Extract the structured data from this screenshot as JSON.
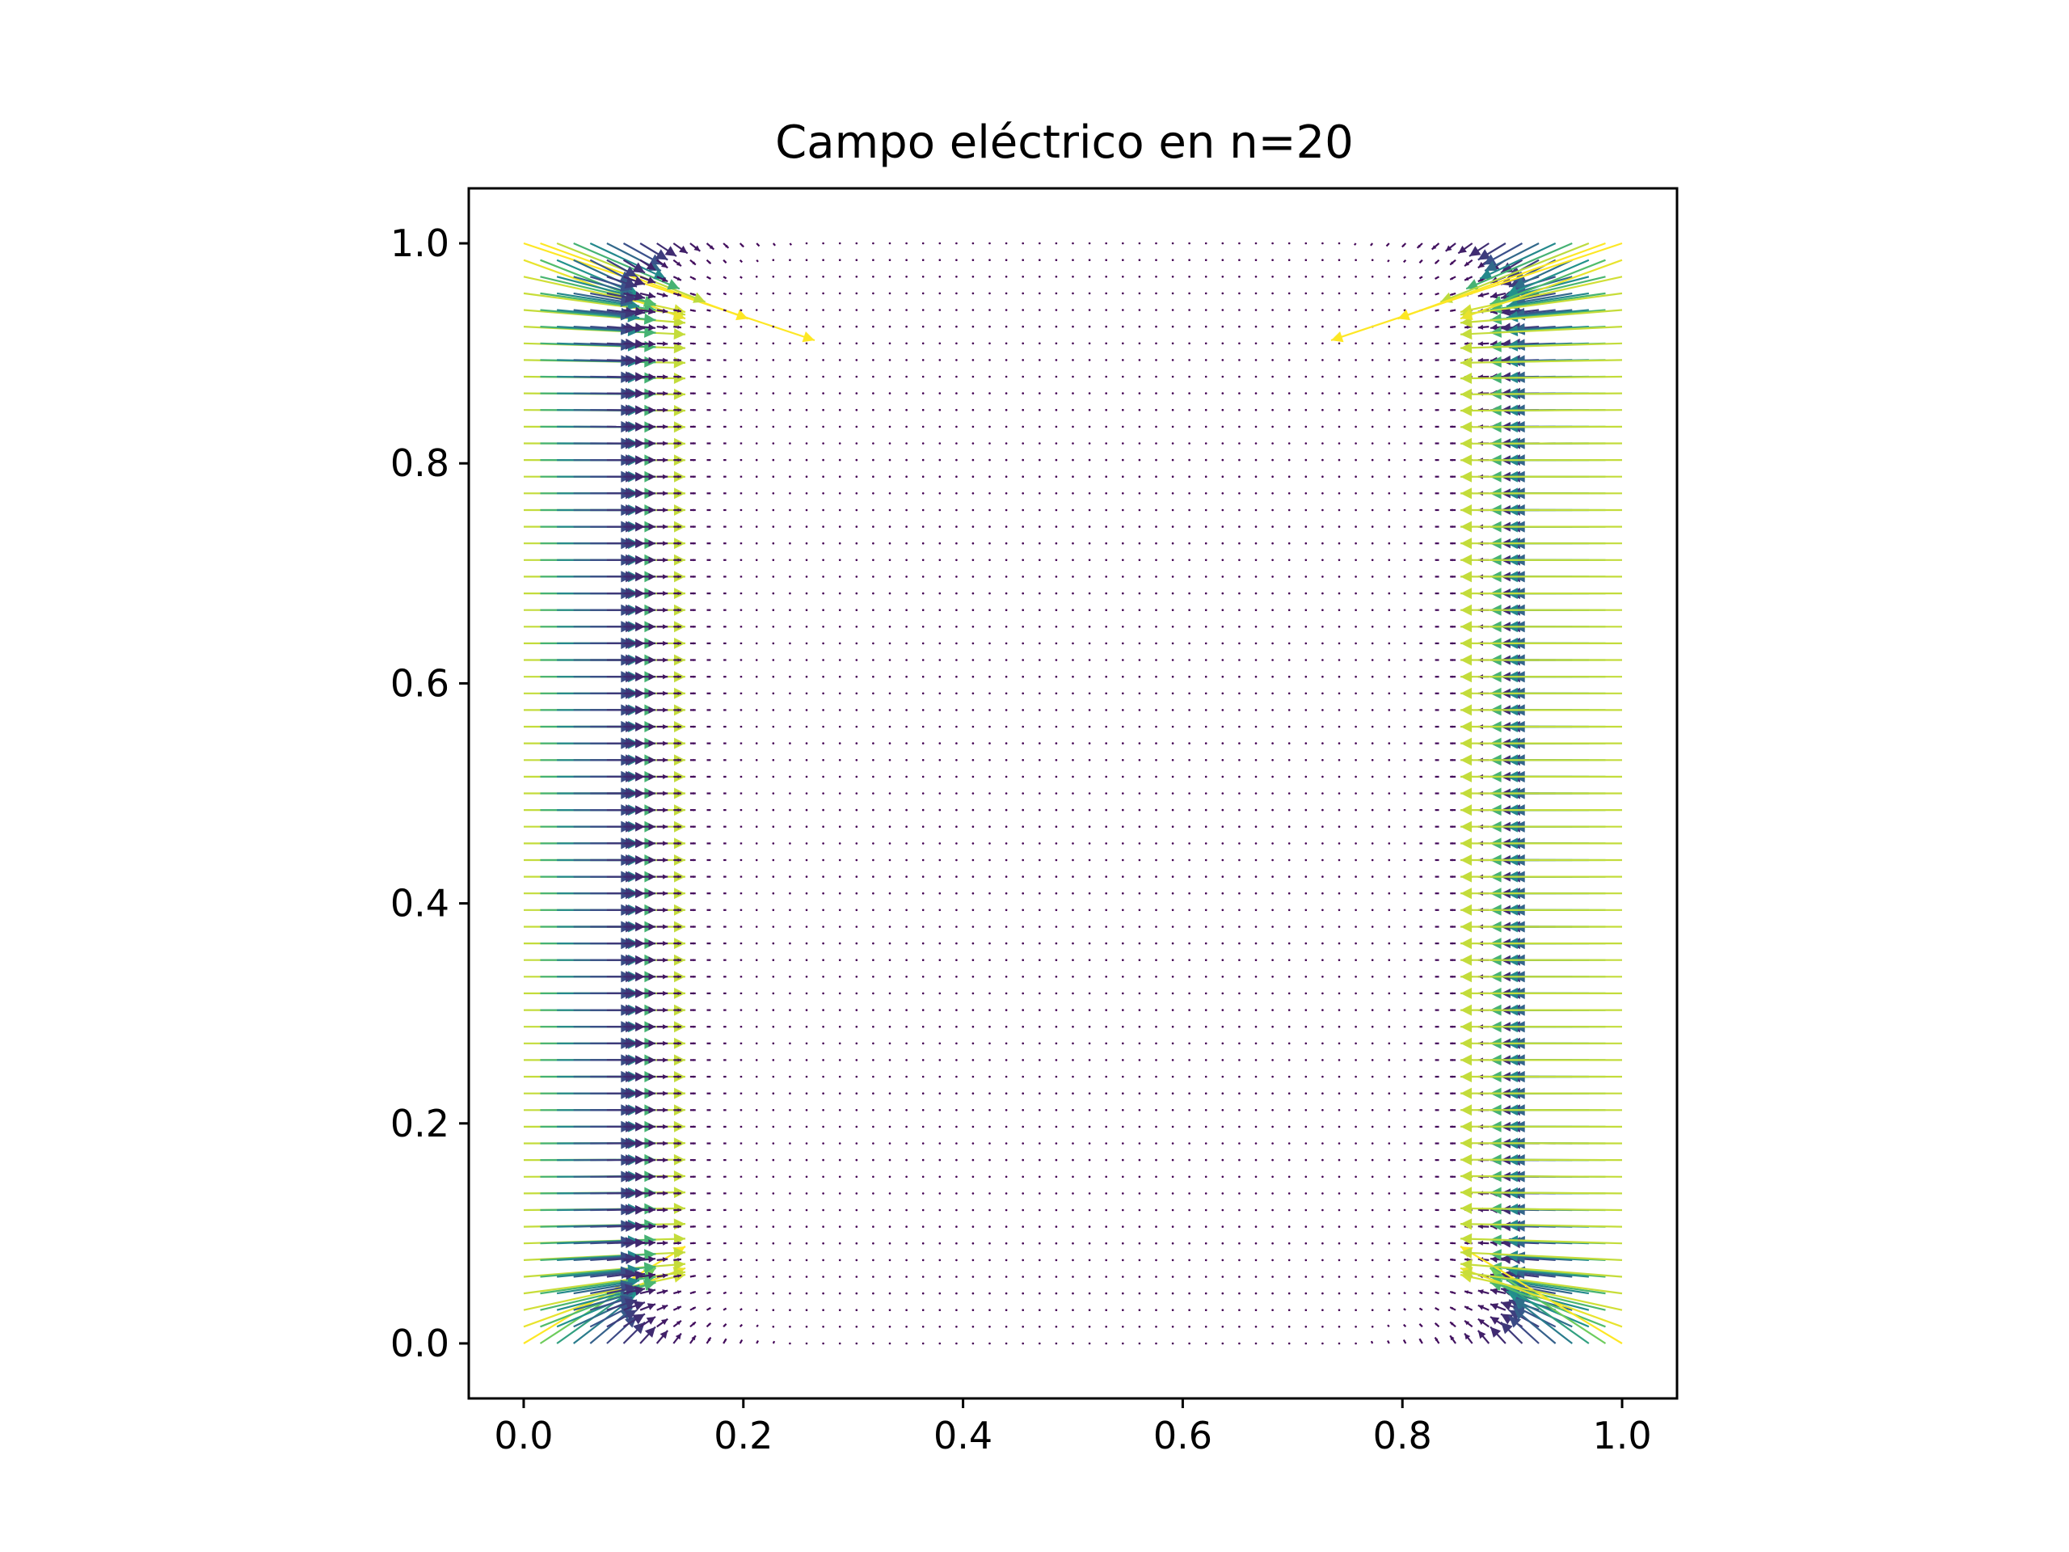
{
  "chart_data": {
    "type": "quiver",
    "title": "Campo eléctrico en n=20",
    "xlabel": "",
    "ylabel": "",
    "xlim": [
      -0.05,
      1.05
    ],
    "ylim": [
      -0.05,
      1.05
    ],
    "xticks": [
      0.0,
      0.2,
      0.4,
      0.6,
      0.8,
      1.0
    ],
    "yticks": [
      0.0,
      0.2,
      0.4,
      0.6,
      0.8,
      1.0
    ],
    "xtick_labels": [
      "0.0",
      "0.2",
      "0.4",
      "0.6",
      "0.8",
      "1.0"
    ],
    "ytick_labels": [
      "0.0",
      "0.2",
      "0.4",
      "0.6",
      "0.8",
      "1.0"
    ],
    "grid": false,
    "colormap": "viridis",
    "grid_points_per_axis": 67,
    "field_description": "Field strong near the left and right boundaries (arrows point inward from x=0 and x=1), near zero in the interior; strongest yellow arrows at the top corners.",
    "colors": {
      "low": "#440154",
      "mid_low": "#3b528b",
      "mid": "#21918c",
      "mid_high": "#5ec962",
      "high": "#fde725"
    }
  }
}
